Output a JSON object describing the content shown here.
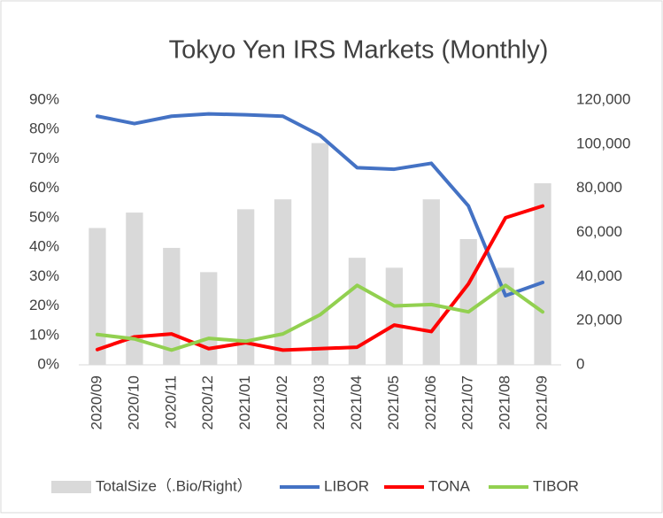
{
  "chart_data": {
    "type": "bar-line",
    "title": "Tokyo Yen IRS Markets (Monthly)",
    "categories": [
      "2020/09",
      "2020/10",
      "2020/11",
      "2020/12",
      "2021/01",
      "2021/02",
      "2021/03",
      "2021/04",
      "2021/05",
      "2021/06",
      "2021/07",
      "2021/08",
      "2021/09"
    ],
    "series": [
      {
        "name": "TotalSize（.Bio/Right）",
        "type": "bar",
        "axis": "y2",
        "color": "#d9d9d9",
        "values": [
          62000,
          69000,
          53000,
          42000,
          70500,
          75000,
          100500,
          48500,
          44000,
          75000,
          57000,
          44000,
          82300
        ]
      },
      {
        "name": "LIBOR",
        "type": "line",
        "color": "#4472c4",
        "values": [
          84.5,
          82,
          84.5,
          85.3,
          85,
          84.5,
          78,
          67,
          66.5,
          68.5,
          54,
          23.5,
          28
        ]
      },
      {
        "name": "TONA",
        "type": "line",
        "color": "#ff0000",
        "values": [
          5.2,
          9.5,
          10.5,
          5.5,
          7.5,
          5,
          5.5,
          6,
          13.5,
          11.3,
          27.5,
          50,
          54
        ]
      },
      {
        "name": "TIBOR",
        "type": "line",
        "color": "#92d050",
        "values": [
          10.3,
          8.8,
          5,
          9,
          8,
          10.5,
          17,
          27,
          20,
          20.5,
          18,
          27,
          18
        ]
      }
    ],
    "ylim": [
      0,
      90
    ],
    "yticks": [
      {
        "value": 0,
        "label": "0%"
      },
      {
        "value": 10,
        "label": "10%"
      },
      {
        "value": 20,
        "label": "20%"
      },
      {
        "value": 30,
        "label": "30%"
      },
      {
        "value": 40,
        "label": "40%"
      },
      {
        "value": 50,
        "label": "50%"
      },
      {
        "value": 60,
        "label": "60%"
      },
      {
        "value": 70,
        "label": "70%"
      },
      {
        "value": 80,
        "label": "80%"
      },
      {
        "value": 90,
        "label": "90%"
      }
    ],
    "y2lim": [
      0,
      120000
    ],
    "y2ticks": [
      0,
      {
        "value": 20000,
        "label": "20,000"
      },
      {
        "value": 40000,
        "label": "40,000"
      },
      {
        "value": 60000,
        "label": "60,000"
      },
      {
        "value": 80000,
        "label": "80,000"
      },
      {
        "value": 100000,
        "label": "100,000"
      },
      {
        "value": 120000,
        "label": "120,000"
      }
    ],
    "legend": "bottom",
    "grid": false
  }
}
